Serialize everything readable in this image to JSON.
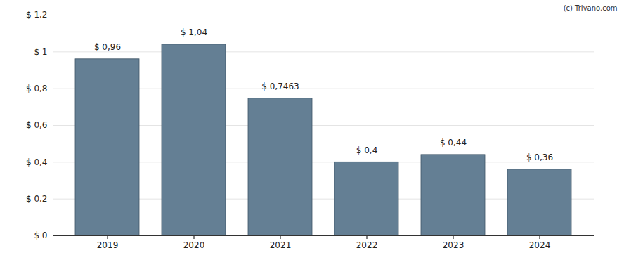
{
  "chart_data": {
    "type": "bar",
    "caption": "(c) Trivano.com",
    "categories": [
      "2019",
      "2020",
      "2021",
      "2022",
      "2023",
      "2024"
    ],
    "values": [
      0.96,
      1.04,
      0.7463,
      0.4,
      0.44,
      0.36
    ],
    "value_labels": [
      "$ 0,96",
      "$ 1,04",
      "$ 0,7463",
      "$ 0,4",
      "$ 0,44",
      "$ 0,36"
    ],
    "color": "#647f94",
    "ylim": [
      0,
      1.2
    ],
    "yticks": [
      {
        "value": 0,
        "label": "$ 0"
      },
      {
        "value": 0.2,
        "label": "$ 0,2"
      },
      {
        "value": 0.4,
        "label": "$ 0,4"
      },
      {
        "value": 0.6,
        "label": "$ 0,6"
      },
      {
        "value": 0.8,
        "label": "$ 0,8"
      },
      {
        "value": 1,
        "label": "$ 1"
      },
      {
        "value": 1.2,
        "label": "$ 1,2"
      }
    ],
    "grid": true,
    "data_labels": true
  }
}
